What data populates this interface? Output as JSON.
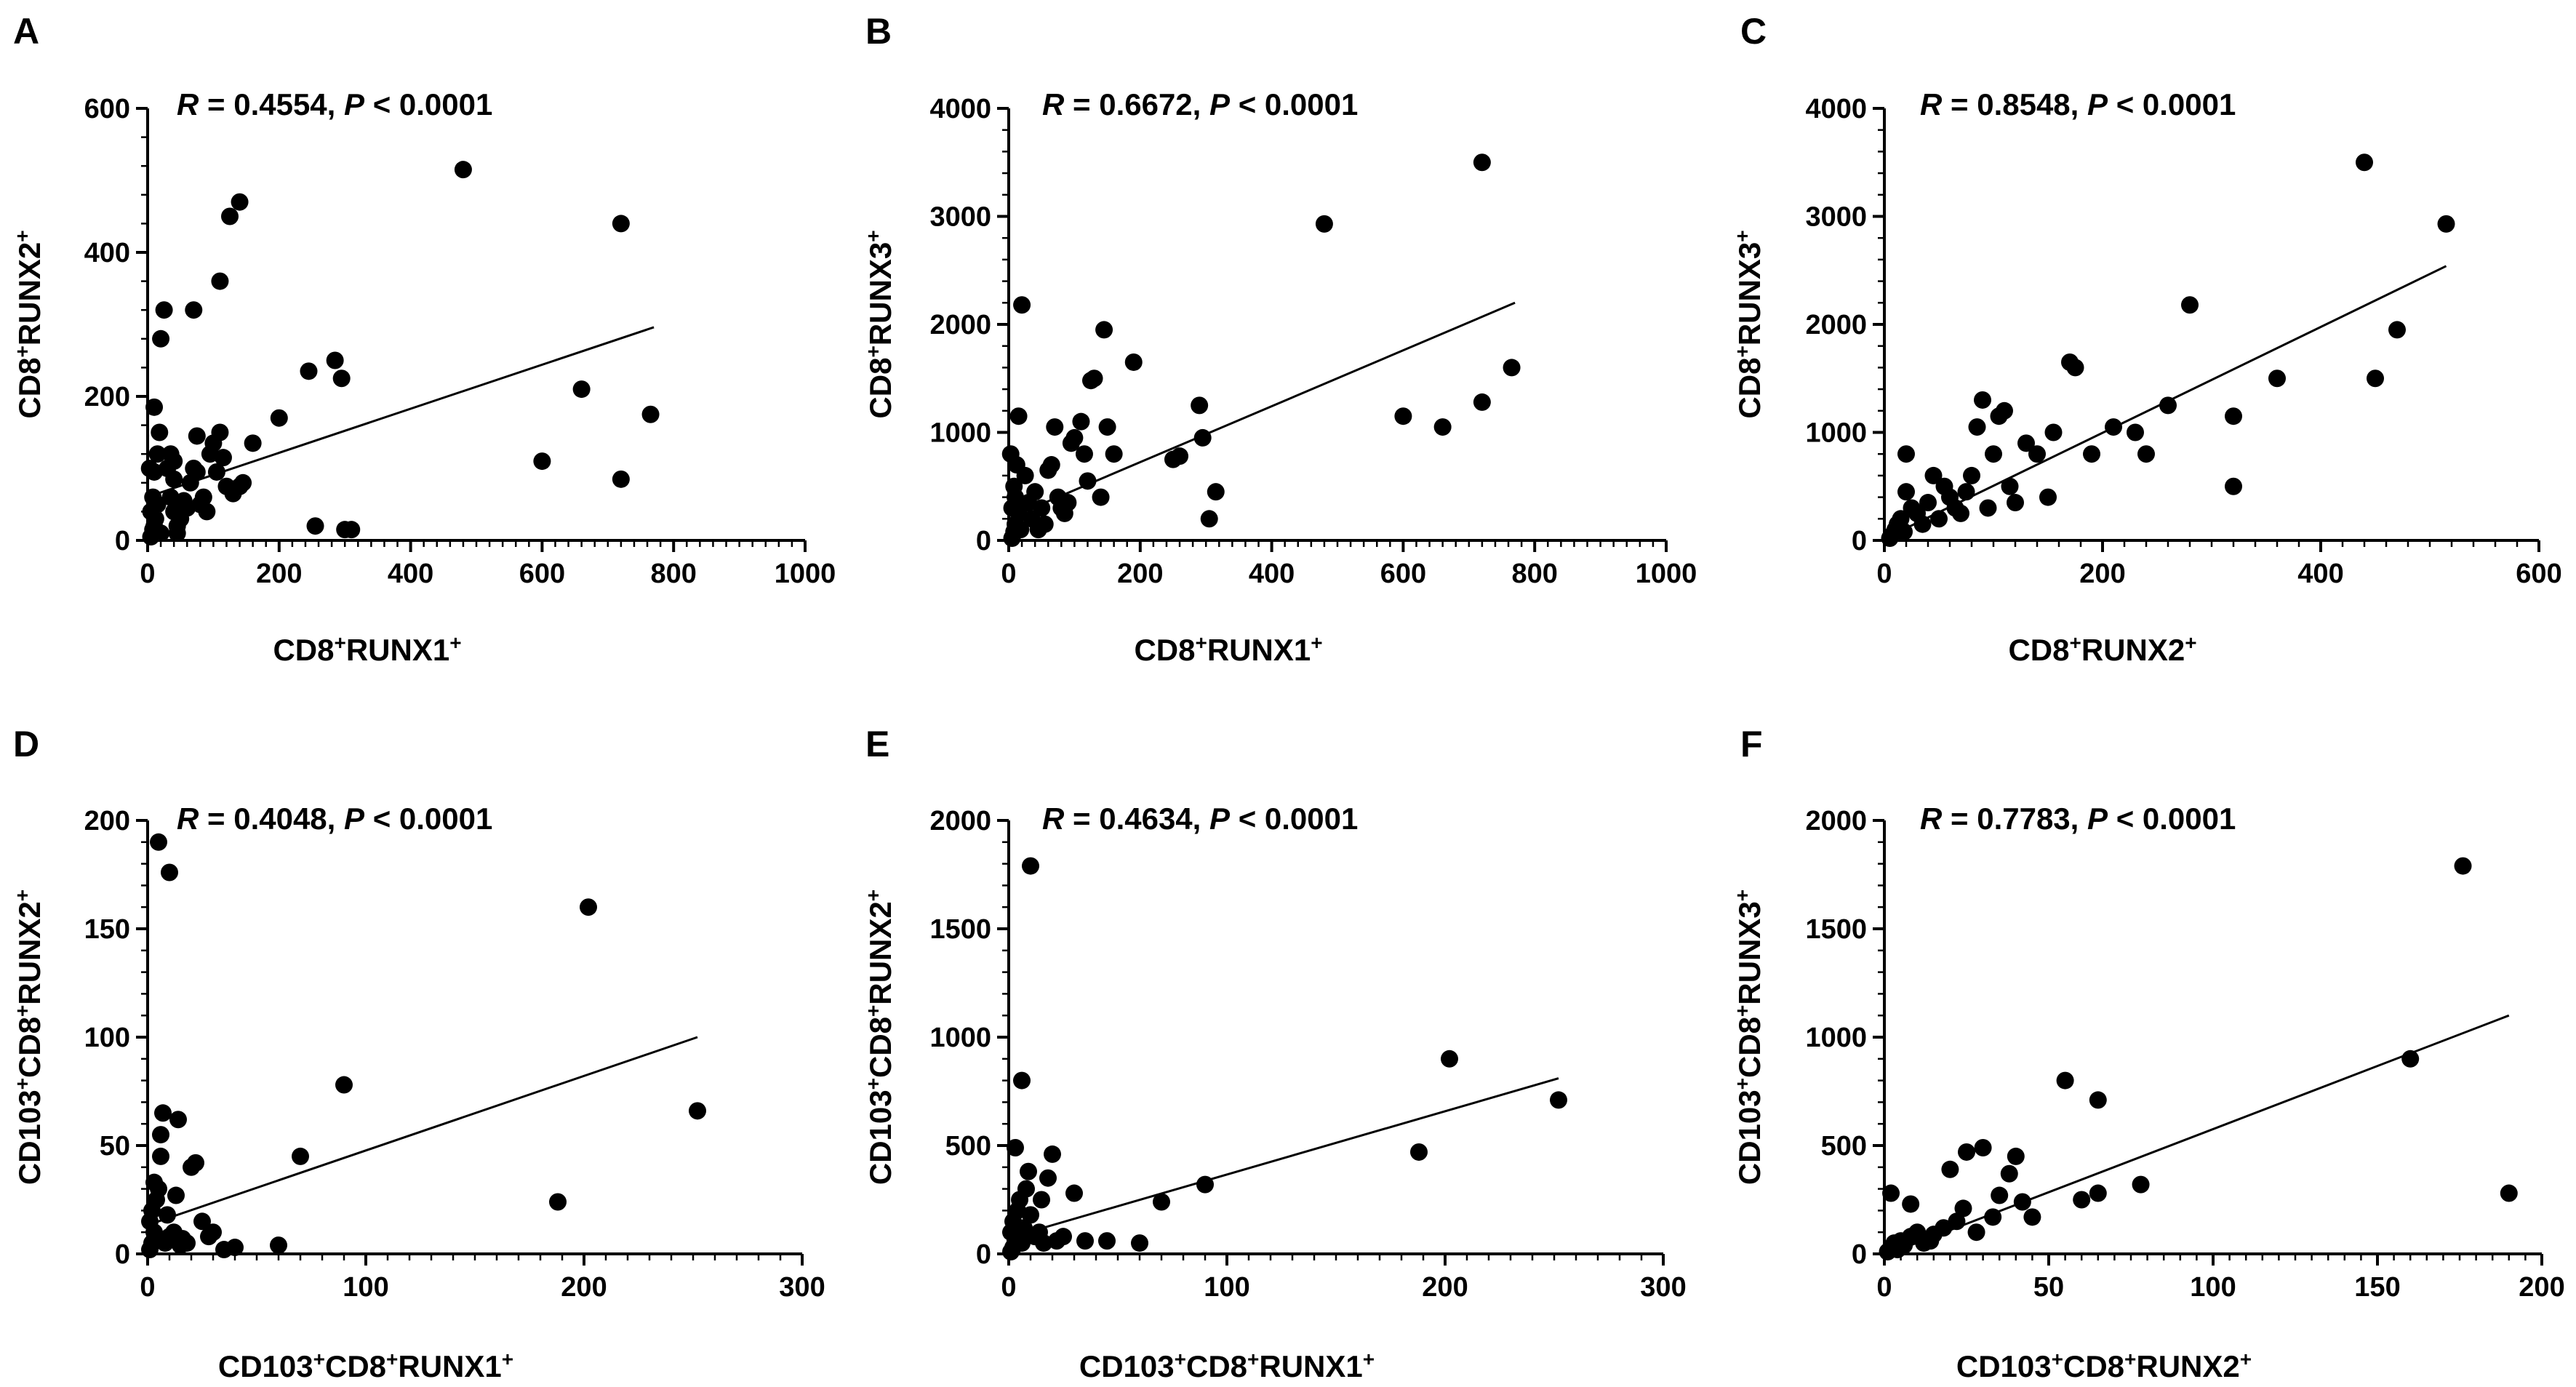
{
  "chart_data": [
    {
      "type": "scatter",
      "panel": "A",
      "xlabel": {
        "pre": "CD8",
        "s1": "+",
        "mid": "RUNX1",
        "s2": "+"
      },
      "ylabel": {
        "pre": "CD8",
        "s1": "+",
        "mid": "RUNX2",
        "s2": "+"
      },
      "xlim": [
        0,
        1000
      ],
      "ylim": [
        0,
        600
      ],
      "xticks": [
        0,
        200,
        400,
        600,
        800,
        1000
      ],
      "yticks": [
        0,
        200,
        400,
        600
      ],
      "stat": {
        "r_symbol": "R",
        "r_text": " = 0.4554, ",
        "p_symbol": "P",
        "p_text": " < 0.0001"
      },
      "fit": [
        [
          5,
          62
        ],
        [
          770,
          296
        ]
      ],
      "points": [
        [
          5,
          5
        ],
        [
          8,
          15
        ],
        [
          10,
          20
        ],
        [
          5,
          40
        ],
        [
          8,
          60
        ],
        [
          12,
          30
        ],
        [
          15,
          50
        ],
        [
          3,
          100
        ],
        [
          10,
          95
        ],
        [
          15,
          120
        ],
        [
          18,
          150
        ],
        [
          10,
          185
        ],
        [
          20,
          280
        ],
        [
          25,
          320
        ],
        [
          20,
          10
        ],
        [
          30,
          100
        ],
        [
          35,
          120
        ],
        [
          40,
          110
        ],
        [
          40,
          85
        ],
        [
          35,
          60
        ],
        [
          40,
          40
        ],
        [
          45,
          20
        ],
        [
          45,
          10
        ],
        [
          50,
          30
        ],
        [
          55,
          55
        ],
        [
          60,
          45
        ],
        [
          65,
          80
        ],
        [
          70,
          100
        ],
        [
          75,
          95
        ],
        [
          70,
          320
        ],
        [
          75,
          145
        ],
        [
          80,
          50
        ],
        [
          85,
          60
        ],
        [
          90,
          40
        ],
        [
          95,
          120
        ],
        [
          100,
          135
        ],
        [
          105,
          95
        ],
        [
          110,
          360
        ],
        [
          110,
          150
        ],
        [
          115,
          115
        ],
        [
          120,
          75
        ],
        [
          125,
          450
        ],
        [
          130,
          65
        ],
        [
          140,
          470
        ],
        [
          140,
          75
        ],
        [
          145,
          80
        ],
        [
          160,
          135
        ],
        [
          200,
          170
        ],
        [
          245,
          235
        ],
        [
          255,
          20
        ],
        [
          285,
          250
        ],
        [
          295,
          225
        ],
        [
          300,
          15
        ],
        [
          310,
          15
        ],
        [
          480,
          515
        ],
        [
          600,
          110
        ],
        [
          660,
          210
        ],
        [
          720,
          440
        ],
        [
          720,
          85
        ],
        [
          765,
          175
        ]
      ]
    },
    {
      "type": "scatter",
      "panel": "B",
      "xlabel": {
        "pre": "CD8",
        "s1": "+",
        "mid": "RUNX1",
        "s2": "+"
      },
      "ylabel": {
        "pre": "CD8",
        "s1": "+",
        "mid": "RUNX3",
        "s2": "+"
      },
      "xlim": [
        0,
        1000
      ],
      "ylim": [
        0,
        4000
      ],
      "xticks": [
        0,
        200,
        400,
        600,
        800,
        1000
      ],
      "yticks": [
        0,
        1000,
        2000,
        3000,
        4000
      ],
      "stat": {
        "r_symbol": "R",
        "r_text": " = 0.6672, ",
        "p_symbol": "P",
        "p_text": " < 0.0001"
      },
      "fit": [
        [
          5,
          220
        ],
        [
          770,
          2200
        ]
      ],
      "points": [
        [
          5,
          20
        ],
        [
          8,
          80
        ],
        [
          10,
          150
        ],
        [
          5,
          300
        ],
        [
          8,
          500
        ],
        [
          12,
          700
        ],
        [
          15,
          1150
        ],
        [
          3,
          800
        ],
        [
          10,
          400
        ],
        [
          15,
          250
        ],
        [
          18,
          100
        ],
        [
          20,
          2180
        ],
        [
          25,
          600
        ],
        [
          30,
          350
        ],
        [
          35,
          200
        ],
        [
          40,
          450
        ],
        [
          45,
          100
        ],
        [
          50,
          300
        ],
        [
          55,
          150
        ],
        [
          60,
          650
        ],
        [
          65,
          700
        ],
        [
          70,
          1050
        ],
        [
          75,
          400
        ],
        [
          80,
          300
        ],
        [
          85,
          250
        ],
        [
          90,
          350
        ],
        [
          95,
          900
        ],
        [
          100,
          950
        ],
        [
          110,
          1100
        ],
        [
          115,
          800
        ],
        [
          120,
          550
        ],
        [
          125,
          1480
        ],
        [
          130,
          1500
        ],
        [
          140,
          400
        ],
        [
          145,
          1950
        ],
        [
          150,
          1050
        ],
        [
          160,
          800
        ],
        [
          190,
          1650
        ],
        [
          250,
          750
        ],
        [
          260,
          780
        ],
        [
          290,
          1250
        ],
        [
          295,
          950
        ],
        [
          305,
          200
        ],
        [
          315,
          450
        ],
        [
          480,
          2930
        ],
        [
          600,
          1150
        ],
        [
          660,
          1050
        ],
        [
          720,
          3500
        ],
        [
          720,
          1280
        ],
        [
          765,
          1600
        ]
      ]
    },
    {
      "type": "scatter",
      "panel": "C",
      "xlabel": {
        "pre": "CD8",
        "s1": "+",
        "mid": "RUNX2",
        "s2": "+"
      },
      "ylabel": {
        "pre": "CD8",
        "s1": "+",
        "mid": "RUNX3",
        "s2": "+"
      },
      "xlim": [
        0,
        600
      ],
      "ylim": [
        0,
        4000
      ],
      "xticks": [
        0,
        200,
        400,
        600
      ],
      "yticks": [
        0,
        1000,
        2000,
        3000,
        4000
      ],
      "stat": {
        "r_symbol": "R",
        "r_text": " = 0.8548, ",
        "p_symbol": "P",
        "p_text": " < 0.0001"
      },
      "fit": [
        [
          5,
          40
        ],
        [
          515,
          2540
        ]
      ],
      "points": [
        [
          5,
          20
        ],
        [
          8,
          60
        ],
        [
          10,
          100
        ],
        [
          12,
          150
        ],
        [
          15,
          200
        ],
        [
          18,
          80
        ],
        [
          20,
          800
        ],
        [
          20,
          450
        ],
        [
          25,
          300
        ],
        [
          30,
          250
        ],
        [
          35,
          150
        ],
        [
          40,
          350
        ],
        [
          45,
          600
        ],
        [
          50,
          200
        ],
        [
          55,
          500
        ],
        [
          60,
          400
        ],
        [
          65,
          300
        ],
        [
          70,
          250
        ],
        [
          75,
          450
        ],
        [
          80,
          600
        ],
        [
          85,
          1050
        ],
        [
          90,
          1300
        ],
        [
          95,
          300
        ],
        [
          100,
          800
        ],
        [
          105,
          1150
        ],
        [
          110,
          1200
        ],
        [
          115,
          500
        ],
        [
          120,
          350
        ],
        [
          130,
          900
        ],
        [
          140,
          800
        ],
        [
          150,
          400
        ],
        [
          155,
          1000
        ],
        [
          170,
          1650
        ],
        [
          175,
          1600
        ],
        [
          190,
          800
        ],
        [
          210,
          1050
        ],
        [
          230,
          1000
        ],
        [
          240,
          800
        ],
        [
          260,
          1250
        ],
        [
          280,
          2180
        ],
        [
          320,
          1150
        ],
        [
          320,
          500
        ],
        [
          360,
          1500
        ],
        [
          440,
          3500
        ],
        [
          450,
          1500
        ],
        [
          470,
          1950
        ],
        [
          515,
          2930
        ]
      ]
    },
    {
      "type": "scatter",
      "panel": "D",
      "xlabel": {
        "pre": "CD103",
        "s1": "+",
        "mid": "CD8",
        "s2": "+",
        "post": "RUNX1",
        "s3": "+"
      },
      "ylabel": {
        "pre": "CD103",
        "s1": "+",
        "mid": "CD8",
        "s2": "+",
        "post": "RUNX2",
        "s3": "+"
      },
      "xlim": [
        0,
        300
      ],
      "ylim": [
        0,
        200
      ],
      "xticks": [
        0,
        100,
        200,
        300
      ],
      "yticks": [
        0,
        50,
        100,
        150,
        200
      ],
      "stat": {
        "r_symbol": "R",
        "r_text": " = 0.4048, ",
        "p_symbol": "P",
        "p_text": " < 0.0001"
      },
      "fit": [
        [
          2,
          14
        ],
        [
          252,
          100
        ]
      ],
      "points": [
        [
          1,
          2
        ],
        [
          2,
          5
        ],
        [
          3,
          10
        ],
        [
          1,
          15
        ],
        [
          2,
          20
        ],
        [
          4,
          25
        ],
        [
          5,
          30
        ],
        [
          3,
          33
        ],
        [
          6,
          45
        ],
        [
          6,
          55
        ],
        [
          7,
          65
        ],
        [
          5,
          190
        ],
        [
          8,
          5
        ],
        [
          9,
          18
        ],
        [
          10,
          8
        ],
        [
          10,
          176
        ],
        [
          12,
          10
        ],
        [
          13,
          27
        ],
        [
          14,
          62
        ],
        [
          15,
          4
        ],
        [
          16,
          7
        ],
        [
          18,
          5
        ],
        [
          20,
          40
        ],
        [
          22,
          42
        ],
        [
          25,
          15
        ],
        [
          28,
          8
        ],
        [
          30,
          10
        ],
        [
          35,
          2
        ],
        [
          40,
          3
        ],
        [
          60,
          4
        ],
        [
          70,
          45
        ],
        [
          90,
          78
        ],
        [
          188,
          24
        ],
        [
          202,
          160
        ],
        [
          252,
          66
        ]
      ]
    },
    {
      "type": "scatter",
      "panel": "E",
      "xlabel": {
        "pre": "CD103",
        "s1": "+",
        "mid": "CD8",
        "s2": "+",
        "post": "RUNX1",
        "s3": "+"
      },
      "ylabel": {
        "pre": "CD103",
        "s1": "+",
        "mid": "CD8",
        "s2": "+",
        "post": "RUNX2",
        "s3": "+"
      },
      "xlim": [
        0,
        300
      ],
      "ylim": [
        0,
        2000
      ],
      "xticks": [
        0,
        100,
        200,
        300
      ],
      "yticks": [
        0,
        500,
        1000,
        1500,
        2000
      ],
      "stat": {
        "r_symbol": "R",
        "r_text": " = 0.4634, ",
        "p_symbol": "P",
        "p_text": " < 0.0001"
      },
      "fit": [
        [
          2,
          80
        ],
        [
          252,
          810
        ]
      ],
      "points": [
        [
          1,
          10
        ],
        [
          2,
          30
        ],
        [
          3,
          60
        ],
        [
          1,
          100
        ],
        [
          2,
          150
        ],
        [
          3,
          490
        ],
        [
          4,
          200
        ],
        [
          5,
          250
        ],
        [
          6,
          800
        ],
        [
          6,
          50
        ],
        [
          7,
          120
        ],
        [
          8,
          300
        ],
        [
          9,
          380
        ],
        [
          10,
          1790
        ],
        [
          10,
          180
        ],
        [
          12,
          80
        ],
        [
          14,
          100
        ],
        [
          15,
          250
        ],
        [
          16,
          50
        ],
        [
          18,
          350
        ],
        [
          20,
          460
        ],
        [
          22,
          60
        ],
        [
          25,
          80
        ],
        [
          30,
          280
        ],
        [
          35,
          60
        ],
        [
          45,
          60
        ],
        [
          60,
          50
        ],
        [
          70,
          240
        ],
        [
          90,
          320
        ],
        [
          188,
          470
        ],
        [
          202,
          900
        ],
        [
          252,
          710
        ]
      ]
    },
    {
      "type": "scatter",
      "panel": "F",
      "xlabel": {
        "pre": "CD103",
        "s1": "+",
        "mid": "CD8",
        "s2": "+",
        "post": "RUNX2",
        "s3": "+"
      },
      "ylabel": {
        "pre": "CD103",
        "s1": "+",
        "mid": "CD8",
        "s2": "+",
        "post": "RUNX3",
        "s3": "+"
      },
      "xlim": [
        0,
        200
      ],
      "ylim": [
        0,
        2000
      ],
      "xticks": [
        0,
        50,
        100,
        150,
        200
      ],
      "yticks": [
        0,
        500,
        1000,
        1500,
        2000
      ],
      "stat": {
        "r_symbol": "R",
        "r_text": " = 0.7783, ",
        "p_symbol": "P",
        "p_text": " < 0.0001"
      },
      "fit": [
        [
          2,
          5
        ],
        [
          190,
          1100
        ]
      ],
      "points": [
        [
          1,
          10
        ],
        [
          2,
          30
        ],
        [
          3,
          50
        ],
        [
          2,
          280
        ],
        [
          4,
          20
        ],
        [
          5,
          60
        ],
        [
          6,
          40
        ],
        [
          8,
          80
        ],
        [
          8,
          230
        ],
        [
          10,
          100
        ],
        [
          12,
          50
        ],
        [
          14,
          60
        ],
        [
          15,
          90
        ],
        [
          18,
          120
        ],
        [
          20,
          390
        ],
        [
          22,
          150
        ],
        [
          24,
          210
        ],
        [
          25,
          470
        ],
        [
          28,
          100
        ],
        [
          30,
          490
        ],
        [
          33,
          170
        ],
        [
          35,
          270
        ],
        [
          38,
          370
        ],
        [
          40,
          450
        ],
        [
          42,
          240
        ],
        [
          45,
          170
        ],
        [
          55,
          800
        ],
        [
          60,
          250
        ],
        [
          65,
          710
        ],
        [
          65,
          280
        ],
        [
          78,
          320
        ],
        [
          160,
          900
        ],
        [
          176,
          1790
        ],
        [
          190,
          280
        ]
      ]
    }
  ]
}
